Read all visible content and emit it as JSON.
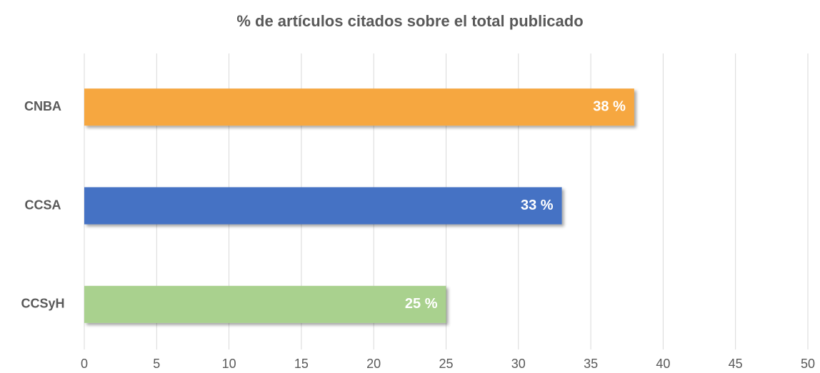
{
  "chart_data": {
    "type": "bar",
    "orientation": "horizontal",
    "title": "% de artículos citados sobre el total publicado",
    "categories": [
      "CNBA",
      "CCSA",
      "CCSyH"
    ],
    "values": [
      38,
      33,
      25
    ],
    "value_labels": [
      "38 %",
      "33 %",
      "25 %"
    ],
    "colors": [
      "#f6a73f",
      "#4472c4",
      "#a9d18e"
    ],
    "xlim": [
      0,
      50
    ],
    "xticks": [
      0,
      5,
      10,
      15,
      20,
      25,
      30,
      35,
      40,
      45,
      50
    ],
    "grid": true
  }
}
